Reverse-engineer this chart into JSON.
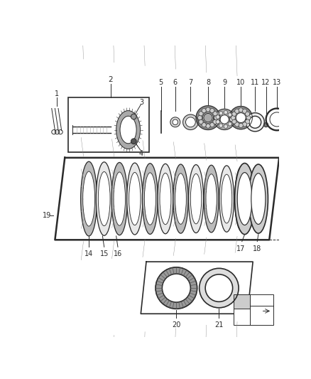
{
  "bg_color": "#ffffff",
  "line_color": "#2a2a2a",
  "gray1": "#cccccc",
  "gray2": "#999999",
  "gray3": "#666666",
  "gray_light": "#e8e8e8",
  "fig_w": 4.38,
  "fig_h": 5.33,
  "dpi": 100
}
